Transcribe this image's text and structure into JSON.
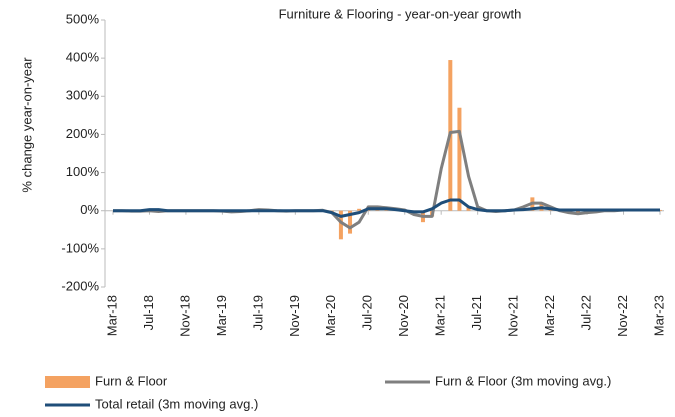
{
  "chart_data": {
    "type": "bar",
    "title": "Furniture & Flooring - year-on-year  growth",
    "y_label": "% change year-on-year",
    "categories": [
      "Mar-18",
      null,
      null,
      null,
      "Jul-18",
      null,
      null,
      null,
      "Nov-18",
      null,
      null,
      null,
      "Mar-19",
      null,
      null,
      null,
      "Jul-19",
      null,
      null,
      null,
      "Nov-19",
      null,
      null,
      null,
      "Mar-20",
      null,
      null,
      null,
      "Jul-20",
      null,
      null,
      null,
      "Nov-20",
      null,
      null,
      null,
      "Mar-21",
      null,
      null,
      null,
      "Jul-21",
      null,
      null,
      null,
      "Nov-21",
      null,
      null,
      null,
      "Mar-22",
      null,
      null,
      null,
      "Jul-22",
      null,
      null,
      null,
      "Nov-22",
      null,
      null,
      null,
      "Mar-23"
    ],
    "series": [
      {
        "name": "Furn & Floor",
        "type": "bar",
        "color": "#f4a261",
        "values": [
          0,
          1,
          -2,
          0,
          3,
          -1,
          0,
          1,
          0,
          2,
          0,
          -1,
          0,
          -3,
          0,
          2,
          4,
          1,
          0,
          -2,
          0,
          1,
          0,
          2,
          -5,
          -75,
          -60,
          5,
          8,
          5,
          3,
          2,
          0,
          -5,
          -30,
          -15,
          0,
          395,
          270,
          10,
          5,
          2,
          0,
          0,
          0,
          5,
          35,
          20,
          10,
          5,
          0,
          -5,
          -8,
          -5,
          -3,
          0,
          2,
          3,
          2,
          3,
          2
        ]
      },
      {
        "name": "Furn & Floor (3m moving avg.)",
        "type": "line",
        "color": "#7f7f7f",
        "values": [
          0,
          0,
          -1,
          -1,
          0,
          -2,
          0,
          0,
          0,
          0,
          0,
          0,
          -1,
          -3,
          -2,
          0,
          3,
          2,
          0,
          -1,
          0,
          0,
          0,
          1,
          -5,
          -30,
          -45,
          -30,
          10,
          10,
          8,
          5,
          2,
          -10,
          -15,
          -15,
          110,
          205,
          208,
          90,
          10,
          0,
          -2,
          0,
          2,
          10,
          20,
          20,
          10,
          0,
          -5,
          -8,
          -5,
          -3,
          0,
          0,
          2,
          2,
          2,
          2,
          2
        ]
      },
      {
        "name": "Total retail (3m moving avg.)",
        "type": "line",
        "color": "#1f4e79",
        "values": [
          0,
          0,
          0,
          0,
          3,
          3,
          0,
          0,
          0,
          0,
          0,
          0,
          0,
          0,
          0,
          0,
          0,
          0,
          0,
          0,
          0,
          0,
          0,
          0,
          -5,
          -15,
          -10,
          -5,
          5,
          5,
          5,
          3,
          0,
          -3,
          -3,
          5,
          20,
          28,
          28,
          10,
          3,
          0,
          0,
          0,
          2,
          3,
          5,
          8,
          5,
          2,
          2,
          2,
          2,
          2,
          2,
          2,
          2,
          2,
          2,
          2,
          2
        ]
      }
    ],
    "ylim": [
      -200,
      500
    ],
    "yticks": [
      {
        "value": -200,
        "label": "-200%"
      },
      {
        "value": -100,
        "label": "-100%"
      },
      {
        "value": 0,
        "label": "0%"
      },
      {
        "value": 100,
        "label": "100%"
      },
      {
        "value": 200,
        "label": "200%"
      },
      {
        "value": 300,
        "label": "300%"
      },
      {
        "value": 400,
        "label": "400%"
      },
      {
        "value": 500,
        "label": "500%"
      }
    ],
    "grid": false
  }
}
